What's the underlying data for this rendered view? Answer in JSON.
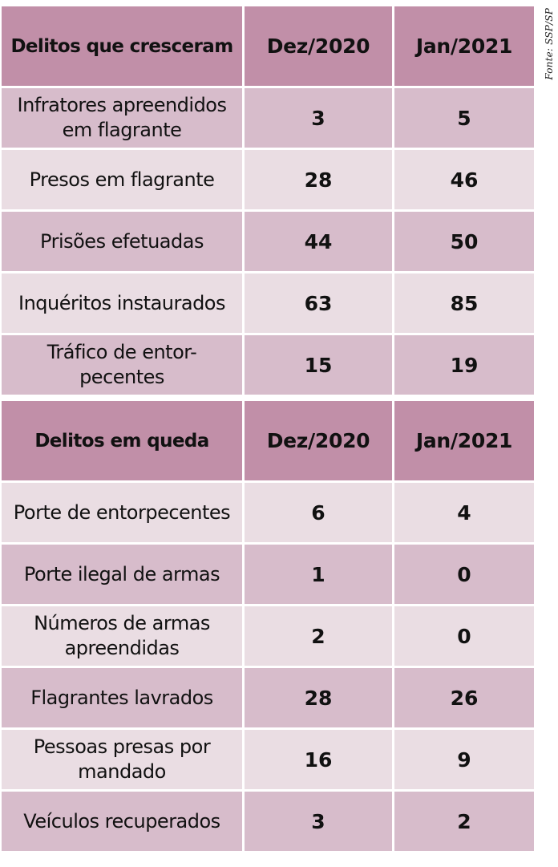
{
  "source": "Fonte: SSP/SP",
  "sections": [
    {
      "header": {
        "label": "Delitos que cresceram",
        "col1": "Dez/2020",
        "col2": "Jan/2021"
      },
      "rows": [
        {
          "label": "Infratores apreendidos em flagrante",
          "dez": "3",
          "jan": "5"
        },
        {
          "label": "Presos em flagrante",
          "dez": "28",
          "jan": "46"
        },
        {
          "label": "Prisões efetuadas",
          "dez": "44",
          "jan": "50"
        },
        {
          "label": "Inquéritos instaurados",
          "dez": "63",
          "jan": "85"
        },
        {
          "label": "Tráfico de entor-pecentes",
          "dez": "15",
          "jan": "19"
        }
      ]
    },
    {
      "header": {
        "label": "Delitos em queda",
        "col1": "Dez/2020",
        "col2": "Jan/2021"
      },
      "rows": [
        {
          "label": "Porte de entorpecentes",
          "dez": "6",
          "jan": "4"
        },
        {
          "label": "Porte ilegal de armas",
          "dez": "1",
          "jan": "0"
        },
        {
          "label": "Números de armas apreendidas",
          "dez": "2",
          "jan": "0"
        },
        {
          "label": "Flagrantes lavrados",
          "dez": "28",
          "jan": "26"
        },
        {
          "label": "Pessoas presas por mandado",
          "dez": "16",
          "jan": "9"
        },
        {
          "label": "Veículos recuperados",
          "dez": "3",
          "jan": "2"
        }
      ]
    }
  ],
  "colors": {
    "header": "#c18fa8",
    "row_dark": "#d7bccb",
    "row_light": "#eadde3"
  }
}
